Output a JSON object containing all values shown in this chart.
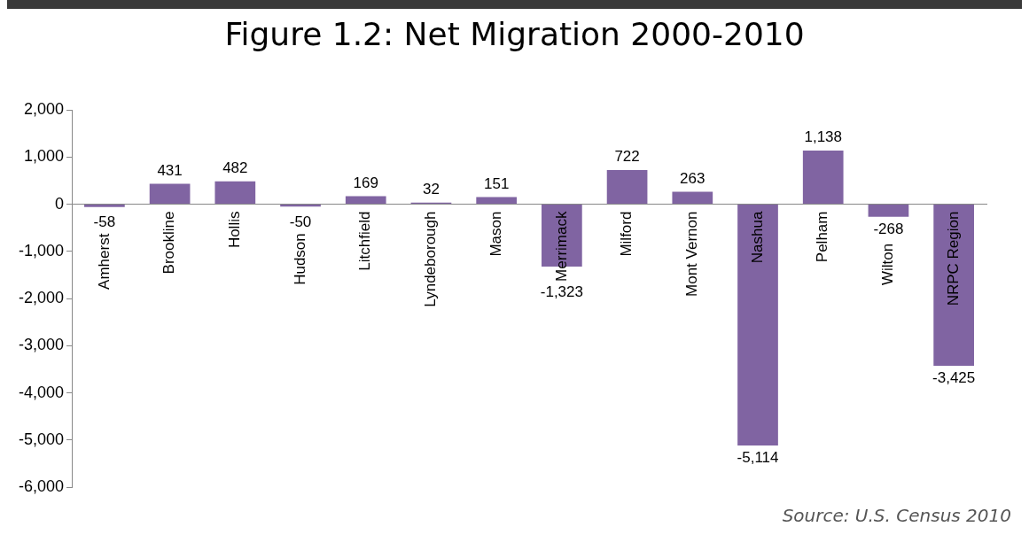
{
  "chart_data": {
    "type": "bar",
    "title": "Figure 1.2: Net Migration 2000-2010",
    "categories": [
      "Amherst",
      "Brookline",
      "Hollis",
      "Hudson",
      "Litchfield",
      "Lyndeborough",
      "Mason",
      "Merrimack",
      "Milford",
      "Mont Vernon",
      "Nashua",
      "Pelham",
      "Wilton",
      "NRPC Region"
    ],
    "values": [
      -58,
      431,
      482,
      -50,
      169,
      32,
      151,
      -1323,
      722,
      263,
      -5114,
      1138,
      -268,
      -3425
    ],
    "color": "#8064a2",
    "ylim": [
      -6000,
      2000
    ],
    "yticks": [
      {
        "value": -6000,
        "label": "-6,000"
      },
      {
        "value": -5000,
        "label": "-5,000"
      },
      {
        "value": -4000,
        "label": "-4,000"
      },
      {
        "value": -3000,
        "label": "-3,000"
      },
      {
        "value": -2000,
        "label": "-2,000"
      },
      {
        "value": -1000,
        "label": "-1,000"
      },
      0,
      {
        "value": 1000,
        "label": "1,000"
      },
      {
        "value": 2000,
        "label": "2,000"
      }
    ],
    "value_labels": [
      "-58",
      "431",
      "482",
      "-50",
      "169",
      "32",
      "151",
      "-1,323",
      "722",
      "263",
      "-5,114",
      "1,138",
      "-268",
      "-3,425"
    ],
    "grid": false,
    "legend": false,
    "annotations": [
      "Source: U.S. Census 2010"
    ]
  }
}
